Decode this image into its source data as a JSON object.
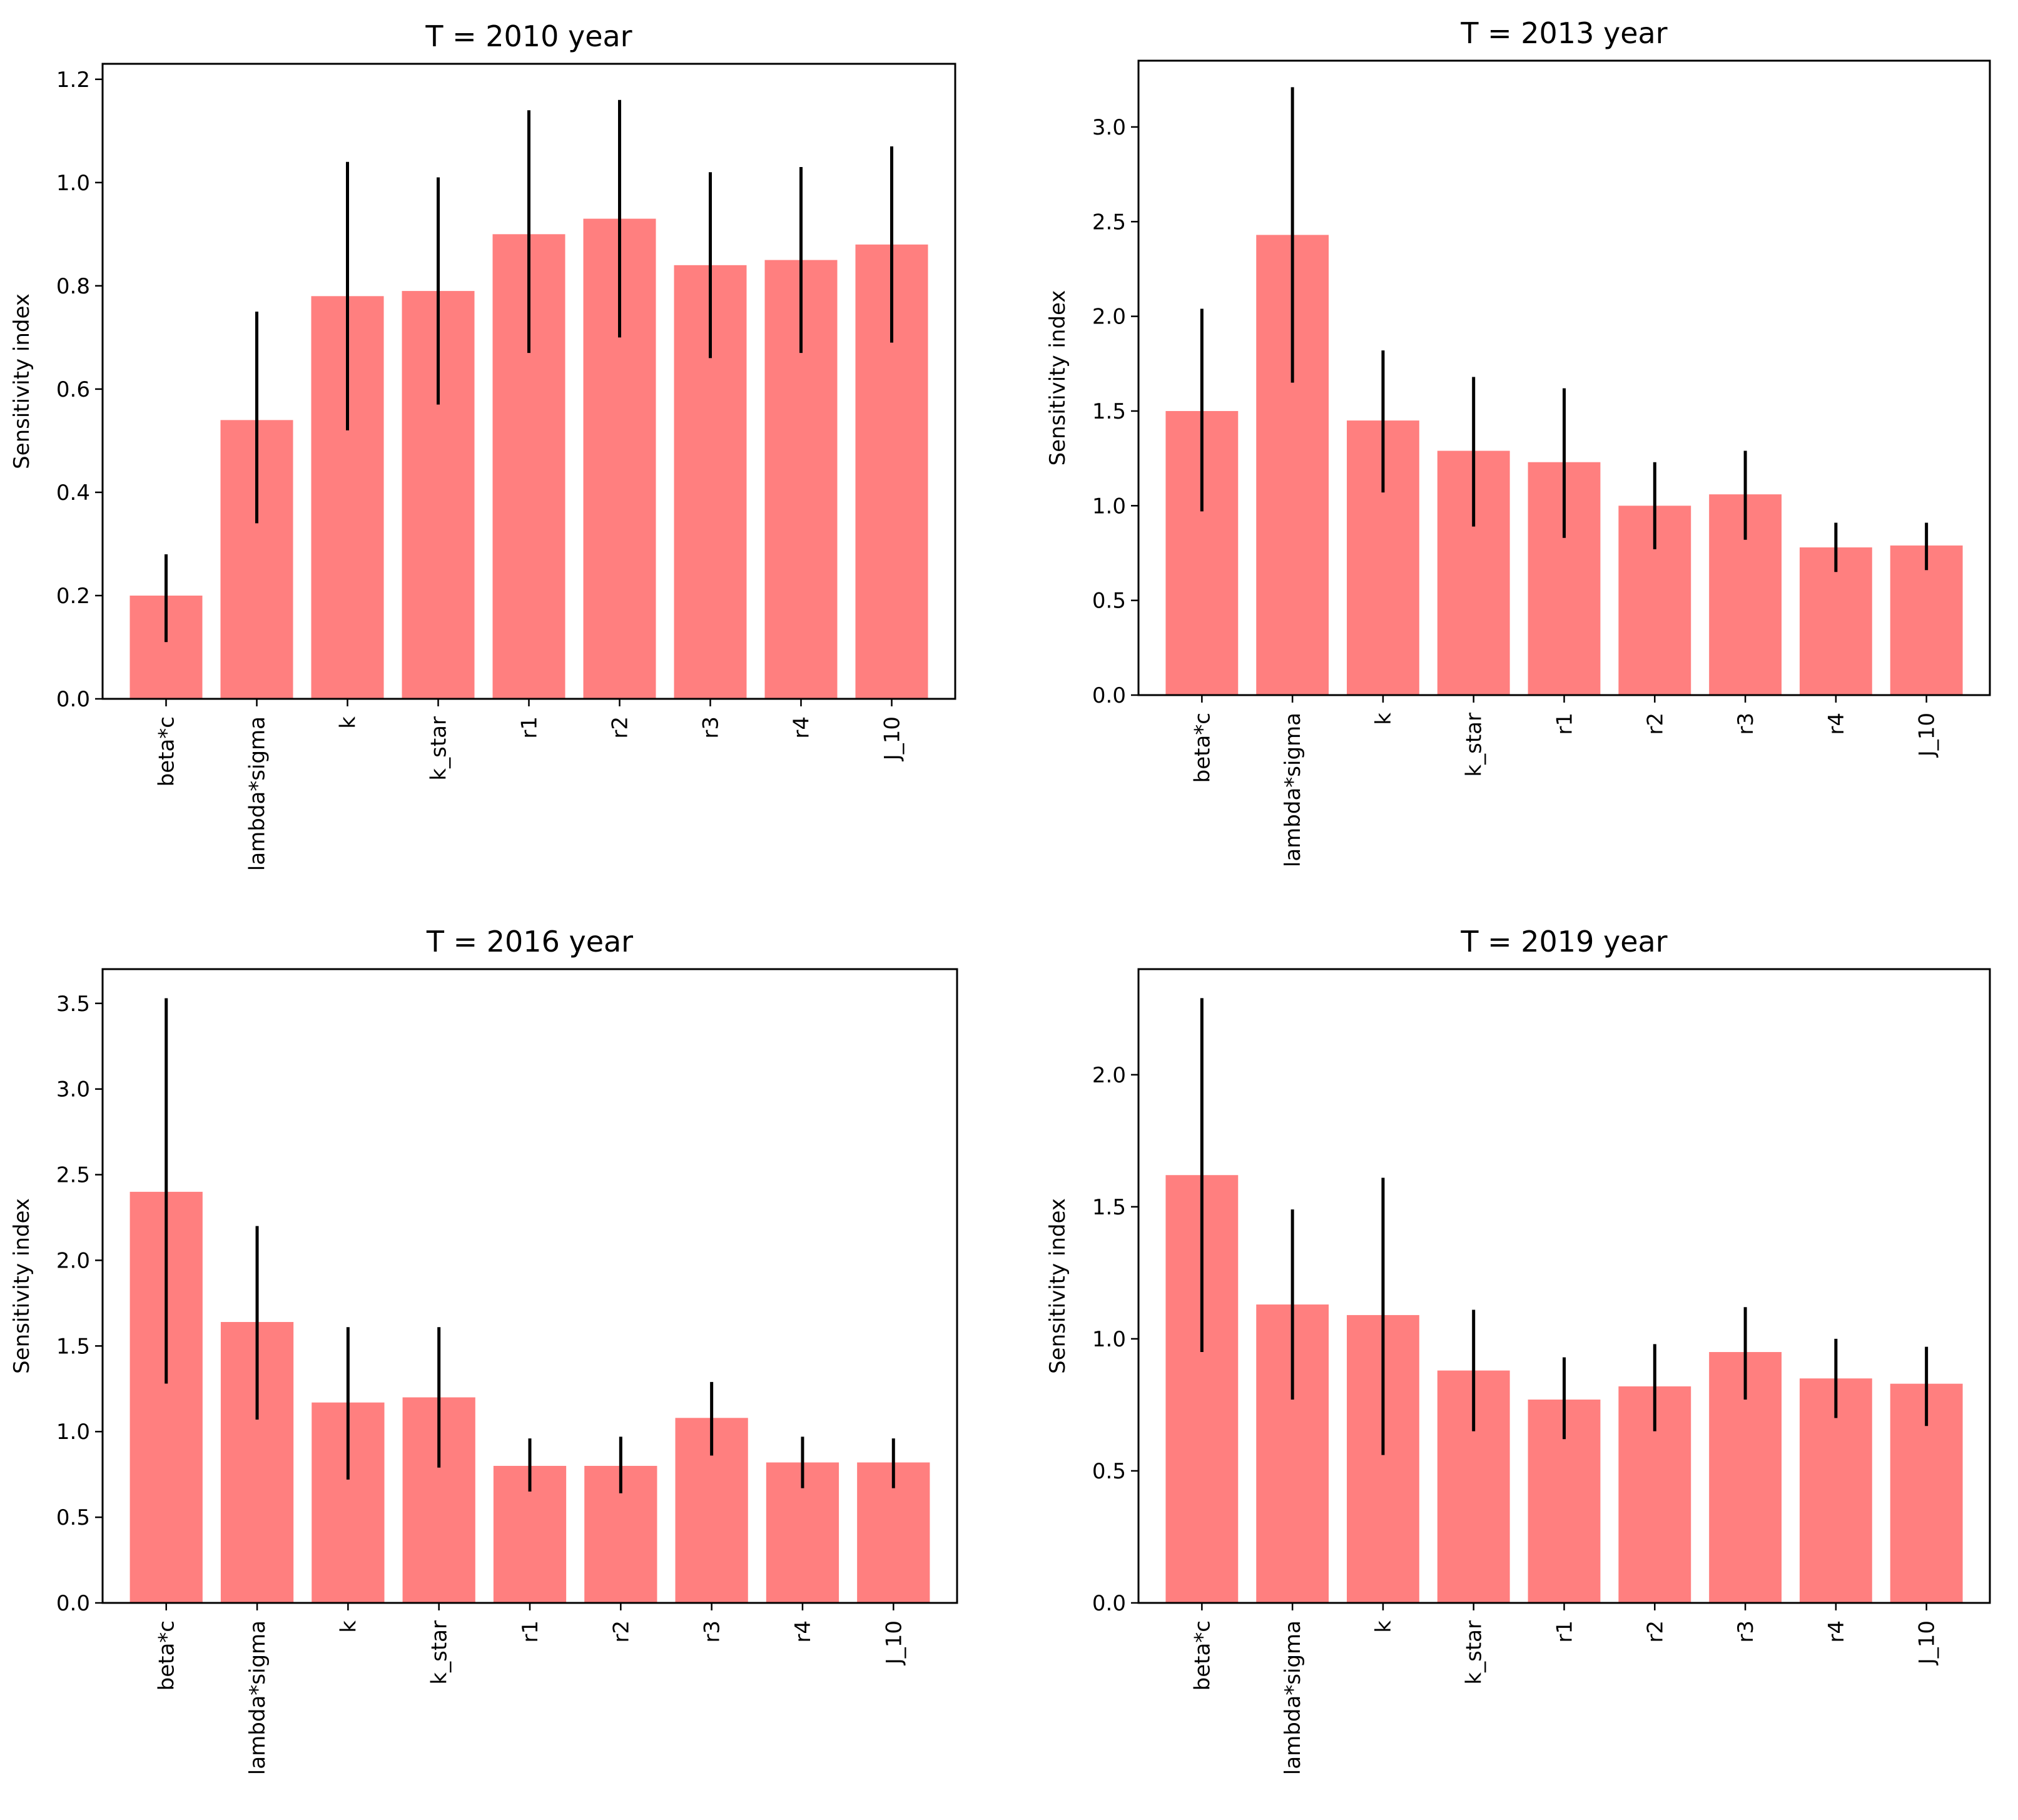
{
  "colors": {
    "bar": "#ff7f7f",
    "error_bar": "#000000",
    "axes": "#000000",
    "background": "#ffffff"
  },
  "chart_data": [
    {
      "type": "bar",
      "title": "T = 2010 year",
      "ylabel": "Sensitivity index",
      "xlabel": "",
      "ylim": [
        0,
        1.23
      ],
      "yticks": [
        "0.0",
        "0.2",
        "0.4",
        "0.6",
        "0.8",
        "1.0",
        "1.2"
      ],
      "categories": [
        "beta*c",
        "lambda*sigma",
        "k",
        "k_star",
        "r1",
        "r2",
        "r3",
        "r4",
        "J_10"
      ],
      "values": [
        0.2,
        0.54,
        0.78,
        0.79,
        0.9,
        0.93,
        0.84,
        0.85,
        0.88
      ],
      "error": [
        [
          0.11,
          0.28
        ],
        [
          0.34,
          0.75
        ],
        [
          0.52,
          1.04
        ],
        [
          0.57,
          1.01
        ],
        [
          0.67,
          1.14
        ],
        [
          0.7,
          1.16
        ],
        [
          0.66,
          1.02
        ],
        [
          0.67,
          1.03
        ],
        [
          0.69,
          1.07
        ]
      ]
    },
    {
      "type": "bar",
      "title": "T = 2013 year",
      "ylabel": "Sensitivity index",
      "xlabel": "",
      "ylim": [
        0,
        3.35
      ],
      "yticks": [
        "0.0",
        "0.5",
        "1.0",
        "1.5",
        "2.0",
        "2.5",
        "3.0"
      ],
      "categories": [
        "beta*c",
        "lambda*sigma",
        "k",
        "k_star",
        "r1",
        "r2",
        "r3",
        "r4",
        "J_10"
      ],
      "values": [
        1.5,
        2.43,
        1.45,
        1.29,
        1.23,
        1.0,
        1.06,
        0.78,
        0.79
      ],
      "error": [
        [
          0.97,
          2.04
        ],
        [
          1.65,
          3.21
        ],
        [
          1.07,
          1.82
        ],
        [
          0.89,
          1.68
        ],
        [
          0.83,
          1.62
        ],
        [
          0.77,
          1.23
        ],
        [
          0.82,
          1.29
        ],
        [
          0.65,
          0.91
        ],
        [
          0.66,
          0.91
        ]
      ]
    },
    {
      "type": "bar",
      "title": "T = 2016 year",
      "ylabel": "Sensitivity index",
      "xlabel": "",
      "ylim": [
        0,
        3.7
      ],
      "yticks": [
        "0.0",
        "0.5",
        "1.0",
        "1.5",
        "2.0",
        "2.5",
        "3.0",
        "3.5"
      ],
      "categories": [
        "beta*c",
        "lambda*sigma",
        "k",
        "k_star",
        "r1",
        "r2",
        "r3",
        "r4",
        "J_10"
      ],
      "values": [
        2.4,
        1.64,
        1.17,
        1.2,
        0.8,
        0.8,
        1.08,
        0.82,
        0.82
      ],
      "error": [
        [
          1.28,
          3.53
        ],
        [
          1.07,
          2.2
        ],
        [
          0.72,
          1.61
        ],
        [
          0.79,
          1.61
        ],
        [
          0.65,
          0.96
        ],
        [
          0.64,
          0.97
        ],
        [
          0.86,
          1.29
        ],
        [
          0.67,
          0.97
        ],
        [
          0.67,
          0.96
        ]
      ]
    },
    {
      "type": "bar",
      "title": "T = 2019 year",
      "ylabel": "Sensitivity index",
      "xlabel": "",
      "ylim": [
        0,
        2.4
      ],
      "yticks": [
        "0.0",
        "0.5",
        "1.0",
        "1.5",
        "2.0"
      ],
      "categories": [
        "beta*c",
        "lambda*sigma",
        "k",
        "k_star",
        "r1",
        "r2",
        "r3",
        "r4",
        "J_10"
      ],
      "values": [
        1.62,
        1.13,
        1.09,
        0.88,
        0.77,
        0.82,
        0.95,
        0.85,
        0.83
      ],
      "error": [
        [
          0.95,
          2.29
        ],
        [
          0.77,
          1.49
        ],
        [
          0.56,
          1.61
        ],
        [
          0.65,
          1.11
        ],
        [
          0.62,
          0.93
        ],
        [
          0.65,
          0.98
        ],
        [
          0.77,
          1.12
        ],
        [
          0.7,
          1.0
        ],
        [
          0.67,
          0.97
        ]
      ]
    }
  ]
}
